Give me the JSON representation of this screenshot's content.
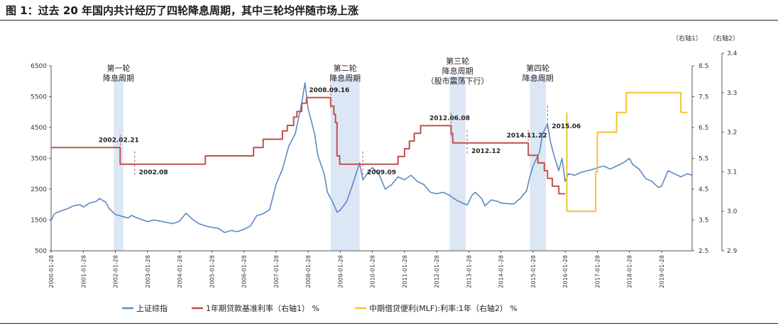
{
  "title": "图 1：过去 20 年国内共计经历了四轮降息周期，其中三轮均伴随市场上涨",
  "chart_data": {
    "type": "line",
    "x_ticks": [
      "2000-01-28",
      "2001-01-28",
      "2002-01-28",
      "2003-01-28",
      "2004-01-28",
      "2005-01-28",
      "2006-01-28",
      "2007-01-28",
      "2008-01-28",
      "2009-01-28",
      "2010-01-28",
      "2011-01-28",
      "2012-01-28",
      "2013-01-28",
      "2014-01-28",
      "2015-01-28",
      "2016-01-28",
      "2017-01-28",
      "2018-01-28",
      "2019-01-28"
    ],
    "y_left_ticks": [
      "500",
      "1500",
      "2500",
      "3500",
      "4500",
      "5500",
      "6500"
    ],
    "y_left_range": [
      500,
      6500
    ],
    "y_right1_label": "（右轴1）",
    "y_right1_ticks": [
      "2.5",
      "3.5",
      "4.5",
      "5.5",
      "6.5",
      "7.5",
      "8.5"
    ],
    "y_right1_range": [
      2.5,
      8.5
    ],
    "y_right2_label": "（右轴2）",
    "y_right2_ticks": [
      "2.9",
      "3.0",
      "3.1",
      "3.2",
      "3.3",
      "3.4"
    ],
    "y_right2_range": [
      2.9,
      3.4
    ],
    "series": [
      {
        "name": "上证综指",
        "color": "#5b8ac4",
        "axis": "left",
        "points": [
          [
            2000.0,
            1480
          ],
          [
            2000.1,
            1700
          ],
          [
            2000.3,
            1790
          ],
          [
            2000.5,
            1860
          ],
          [
            2000.7,
            1960
          ],
          [
            2000.9,
            2000
          ],
          [
            2001.0,
            1920
          ],
          [
            2001.2,
            2050
          ],
          [
            2001.4,
            2100
          ],
          [
            2001.5,
            2200
          ],
          [
            2001.7,
            2080
          ],
          [
            2001.8,
            1870
          ],
          [
            2002.0,
            1680
          ],
          [
            2002.2,
            1620
          ],
          [
            2002.4,
            1560
          ],
          [
            2002.5,
            1650
          ],
          [
            2002.6,
            1600
          ],
          [
            2002.8,
            1520
          ],
          [
            2003.0,
            1450
          ],
          [
            2003.2,
            1500
          ],
          [
            2003.4,
            1460
          ],
          [
            2003.6,
            1420
          ],
          [
            2003.8,
            1380
          ],
          [
            2004.0,
            1470
          ],
          [
            2004.2,
            1720
          ],
          [
            2004.4,
            1520
          ],
          [
            2004.6,
            1380
          ],
          [
            2004.8,
            1310
          ],
          [
            2005.0,
            1260
          ],
          [
            2005.2,
            1230
          ],
          [
            2005.4,
            1090
          ],
          [
            2005.6,
            1160
          ],
          [
            2005.8,
            1120
          ],
          [
            2006.0,
            1200
          ],
          [
            2006.2,
            1300
          ],
          [
            2006.4,
            1640
          ],
          [
            2006.6,
            1700
          ],
          [
            2006.8,
            1830
          ],
          [
            2007.0,
            2650
          ],
          [
            2007.2,
            3150
          ],
          [
            2007.4,
            3900
          ],
          [
            2007.6,
            4300
          ],
          [
            2007.8,
            5300
          ],
          [
            2007.9,
            5950
          ],
          [
            2008.0,
            5100
          ],
          [
            2008.2,
            4300
          ],
          [
            2008.3,
            3600
          ],
          [
            2008.5,
            3000
          ],
          [
            2008.6,
            2400
          ],
          [
            2008.8,
            2000
          ],
          [
            2008.9,
            1750
          ],
          [
            2009.0,
            1820
          ],
          [
            2009.2,
            2100
          ],
          [
            2009.4,
            2700
          ],
          [
            2009.6,
            3350
          ],
          [
            2009.7,
            2800
          ],
          [
            2009.9,
            3100
          ],
          [
            2010.0,
            3200
          ],
          [
            2010.2,
            3000
          ],
          [
            2010.4,
            2500
          ],
          [
            2010.6,
            2650
          ],
          [
            2010.8,
            2900
          ],
          [
            2011.0,
            2800
          ],
          [
            2011.2,
            2950
          ],
          [
            2011.4,
            2750
          ],
          [
            2011.6,
            2650
          ],
          [
            2011.8,
            2400
          ],
          [
            2012.0,
            2350
          ],
          [
            2012.2,
            2400
          ],
          [
            2012.4,
            2300
          ],
          [
            2012.6,
            2150
          ],
          [
            2012.8,
            2050
          ],
          [
            2012.95,
            1990
          ],
          [
            2013.1,
            2300
          ],
          [
            2013.2,
            2400
          ],
          [
            2013.4,
            2200
          ],
          [
            2013.5,
            1960
          ],
          [
            2013.7,
            2150
          ],
          [
            2013.9,
            2100
          ],
          [
            2014.0,
            2050
          ],
          [
            2014.2,
            2030
          ],
          [
            2014.4,
            2020
          ],
          [
            2014.6,
            2200
          ],
          [
            2014.8,
            2450
          ],
          [
            2014.9,
            2900
          ],
          [
            2015.0,
            3250
          ],
          [
            2015.2,
            3700
          ],
          [
            2015.3,
            4300
          ],
          [
            2015.45,
            4620
          ],
          [
            2015.55,
            4000
          ],
          [
            2015.65,
            3600
          ],
          [
            2015.8,
            3100
          ],
          [
            2015.9,
            3500
          ],
          [
            2016.0,
            2750
          ],
          [
            2016.1,
            3000
          ],
          [
            2016.3,
            2950
          ],
          [
            2016.5,
            3050
          ],
          [
            2016.7,
            3100
          ],
          [
            2016.9,
            3150
          ],
          [
            2017.0,
            3200
          ],
          [
            2017.2,
            3250
          ],
          [
            2017.4,
            3150
          ],
          [
            2017.6,
            3250
          ],
          [
            2017.8,
            3350
          ],
          [
            2018.0,
            3500
          ],
          [
            2018.1,
            3300
          ],
          [
            2018.3,
            3150
          ],
          [
            2018.5,
            2850
          ],
          [
            2018.7,
            2750
          ],
          [
            2018.9,
            2550
          ],
          [
            2019.0,
            2600
          ],
          [
            2019.2,
            3100
          ],
          [
            2019.4,
            3000
          ],
          [
            2019.6,
            2900
          ],
          [
            2019.8,
            3000
          ],
          [
            2019.95,
            2950
          ]
        ]
      },
      {
        "name": "1年期贷款基准利率（右轴1） %",
        "color": "#c1504a",
        "axis": "right1",
        "points": [
          [
            2000.0,
            5.85
          ],
          [
            2002.15,
            5.85
          ],
          [
            2002.15,
            5.31
          ],
          [
            2004.8,
            5.31
          ],
          [
            2004.8,
            5.58
          ],
          [
            2006.3,
            5.58
          ],
          [
            2006.3,
            5.85
          ],
          [
            2006.6,
            5.85
          ],
          [
            2006.6,
            6.12
          ],
          [
            2007.2,
            6.12
          ],
          [
            2007.2,
            6.39
          ],
          [
            2007.35,
            6.39
          ],
          [
            2007.35,
            6.57
          ],
          [
            2007.55,
            6.57
          ],
          [
            2007.55,
            6.84
          ],
          [
            2007.65,
            6.84
          ],
          [
            2007.65,
            7.02
          ],
          [
            2007.8,
            7.02
          ],
          [
            2007.8,
            7.29
          ],
          [
            2007.95,
            7.29
          ],
          [
            2007.95,
            7.47
          ],
          [
            2008.7,
            7.47
          ],
          [
            2008.7,
            7.2
          ],
          [
            2008.8,
            7.2
          ],
          [
            2008.8,
            6.93
          ],
          [
            2008.85,
            6.93
          ],
          [
            2008.85,
            6.66
          ],
          [
            2008.9,
            6.66
          ],
          [
            2008.9,
            5.58
          ],
          [
            2008.98,
            5.58
          ],
          [
            2008.98,
            5.31
          ],
          [
            2010.8,
            5.31
          ],
          [
            2010.8,
            5.56
          ],
          [
            2011.0,
            5.56
          ],
          [
            2011.0,
            5.81
          ],
          [
            2011.15,
            5.81
          ],
          [
            2011.15,
            6.06
          ],
          [
            2011.3,
            6.06
          ],
          [
            2011.3,
            6.31
          ],
          [
            2011.5,
            6.31
          ],
          [
            2011.5,
            6.56
          ],
          [
            2012.45,
            6.56
          ],
          [
            2012.45,
            6.31
          ],
          [
            2012.5,
            6.31
          ],
          [
            2012.5,
            6.0
          ],
          [
            2014.85,
            6.0
          ],
          [
            2014.85,
            5.6
          ],
          [
            2015.15,
            5.6
          ],
          [
            2015.15,
            5.35
          ],
          [
            2015.35,
            5.35
          ],
          [
            2015.35,
            5.1
          ],
          [
            2015.45,
            5.1
          ],
          [
            2015.45,
            4.85
          ],
          [
            2015.6,
            4.85
          ],
          [
            2015.6,
            4.6
          ],
          [
            2015.8,
            4.6
          ],
          [
            2015.8,
            4.35
          ],
          [
            2016.0,
            4.35
          ]
        ]
      },
      {
        "name": "中期借贷便利(MLF):利率:1年（右轴2） %",
        "color": "#f5c232",
        "axis": "right2",
        "points": [
          [
            2016.05,
            3.25
          ],
          [
            2016.05,
            3.0
          ],
          [
            2016.95,
            3.0
          ],
          [
            2016.95,
            3.1
          ],
          [
            2017.0,
            3.1
          ],
          [
            2017.0,
            3.2
          ],
          [
            2017.6,
            3.2
          ],
          [
            2017.6,
            3.25
          ],
          [
            2017.9,
            3.25
          ],
          [
            2017.9,
            3.3
          ],
          [
            2019.6,
            3.3
          ],
          [
            2019.6,
            3.25
          ],
          [
            2019.8,
            3.25
          ]
        ]
      }
    ],
    "cycles": [
      {
        "label": "第一轮\n降息周期",
        "start": 2001.95,
        "end": 2002.25
      },
      {
        "label": "第二轮\n降息周期",
        "start": 2008.7,
        "end": 2009.6
      },
      {
        "label": "第三轮\n降息周期\n（股市震荡下行）",
        "start": 2012.4,
        "end": 2012.9
      },
      {
        "label": "第四轮\n降息周期",
        "start": 2014.9,
        "end": 2015.4
      }
    ],
    "annotations": [
      {
        "text": "2002.02.21",
        "x": 2002.15,
        "y": 5.85
      },
      {
        "text": "2002.08",
        "x": 2002.6,
        "y": 5.31
      },
      {
        "text": "2008.09.16",
        "x": 2008.7,
        "y": 7.47
      },
      {
        "text": "2009.09",
        "x": 2009.7,
        "y": 5.31
      },
      {
        "text": "2012.06.08",
        "x": 2012.45,
        "y": 6.56
      },
      {
        "text": "2012.12",
        "x": 2012.95,
        "y": 6.0
      },
      {
        "text": "2014.11.22",
        "x": 2014.85,
        "y": 6.0
      },
      {
        "text": "2015.06",
        "x": 2015.45,
        "y": 6.8
      }
    ],
    "grid": false,
    "legend_position": "bottom"
  }
}
